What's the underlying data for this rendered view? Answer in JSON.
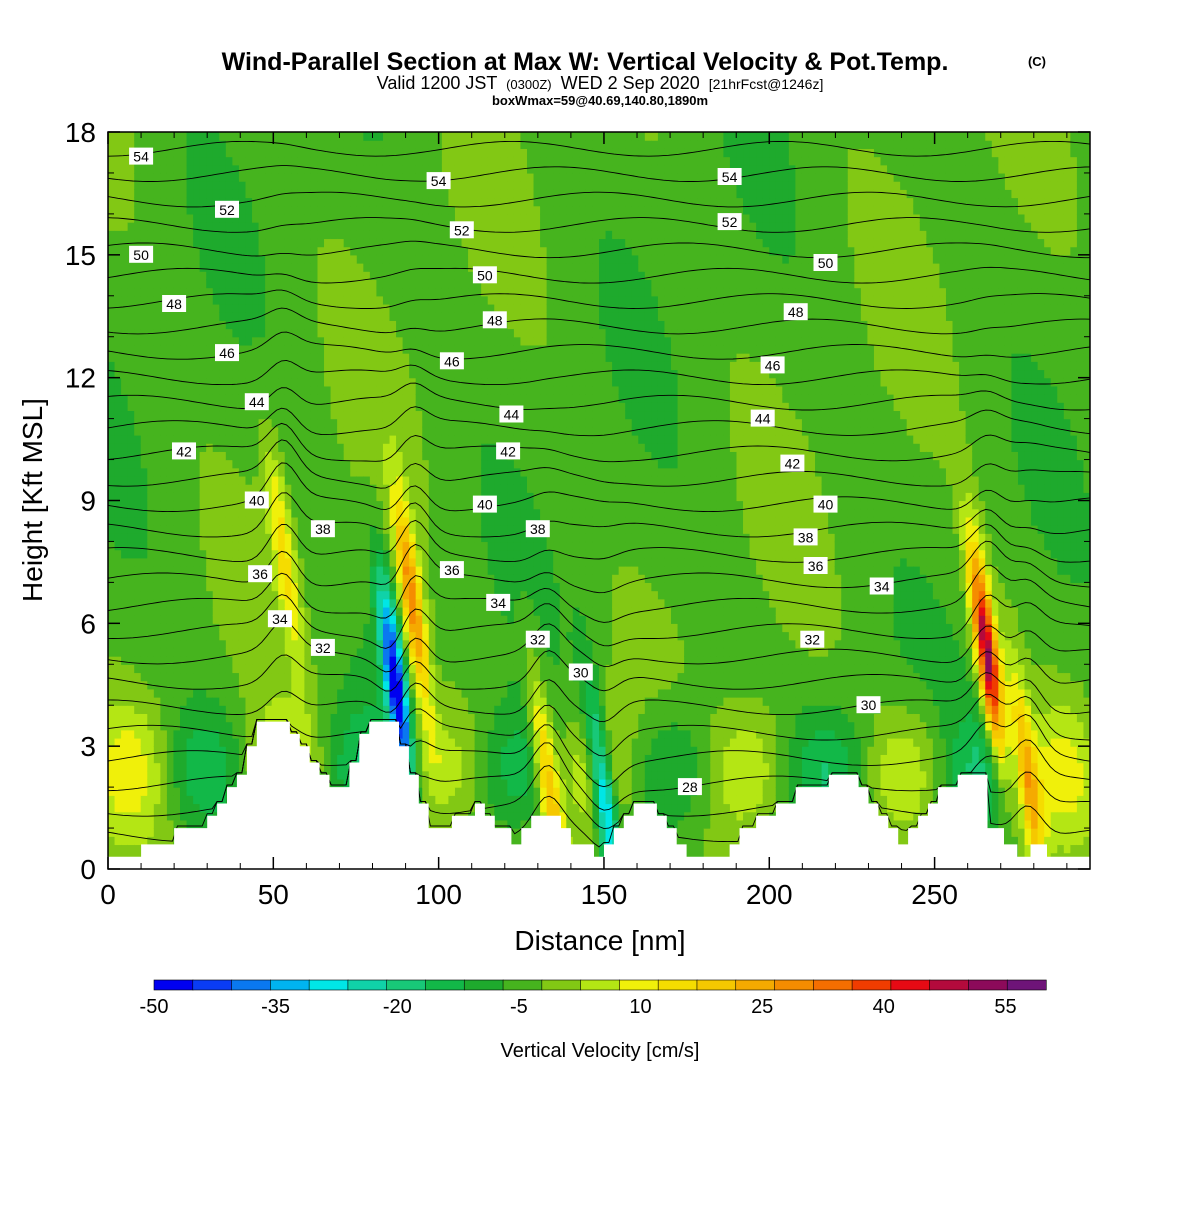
{
  "title": {
    "main": "Wind-Parallel Section at Max W: Vertical Velocity & Pot.Temp.",
    "copyright": "(C)",
    "valid_prefix": "Valid 1200 JST",
    "valid_utc": "(0300Z)",
    "valid_date": "WED 2 Sep 2020",
    "forecast": "[21hrFcst@1246z]",
    "box_info": "boxWmax=59@40.69,140.80,1890m"
  },
  "chart_data": {
    "type": "heatmap",
    "xlabel": "Distance [nm]",
    "ylabel": "Height [Kft MSL]",
    "xlim": [
      0,
      297
    ],
    "ylim": [
      0,
      18
    ],
    "x_ticks": [
      0,
      50,
      100,
      150,
      200,
      250
    ],
    "y_ticks": [
      0,
      3,
      6,
      9,
      12,
      15,
      18
    ],
    "colorbar": {
      "label": "Vertical Velocity [cm/s]",
      "tick_labels": [
        "-50",
        "-35",
        "-20",
        "-5",
        "10",
        "25",
        "40",
        "55"
      ],
      "tick_values": [
        -50,
        -35,
        -20,
        -5,
        10,
        25,
        40,
        55
      ],
      "bins": [
        -50,
        -45,
        -40,
        -35,
        -30,
        -25,
        -20,
        -15,
        -10,
        -5,
        0,
        5,
        10,
        15,
        20,
        25,
        30,
        35,
        40,
        45,
        50,
        55,
        60
      ],
      "colors": [
        "#0000f0",
        "#0a3cf5",
        "#0a78f0",
        "#00b4f0",
        "#00e6e6",
        "#10d2a8",
        "#18c878",
        "#12b848",
        "#1eaa2d",
        "#46b41e",
        "#82c814",
        "#b4e614",
        "#f0f00a",
        "#f5dc00",
        "#f5c800",
        "#f5aa00",
        "#f58c00",
        "#f56e00",
        "#f03c00",
        "#e60a14",
        "#b40a3c",
        "#8c0a5a",
        "#6e1478"
      ]
    },
    "theta_contours": {
      "unit_note": "",
      "labels": [
        {
          "value": "54",
          "x": 10,
          "y": 17.4
        },
        {
          "value": "54",
          "x": 100,
          "y": 16.8
        },
        {
          "value": "54",
          "x": 188,
          "y": 16.9
        },
        {
          "value": "52",
          "x": 36,
          "y": 16.1
        },
        {
          "value": "52",
          "x": 107,
          "y": 15.6
        },
        {
          "value": "52",
          "x": 188,
          "y": 15.8
        },
        {
          "value": "50",
          "x": 10,
          "y": 15.0
        },
        {
          "value": "50",
          "x": 114,
          "y": 14.5
        },
        {
          "value": "50",
          "x": 217,
          "y": 14.8
        },
        {
          "value": "48",
          "x": 20,
          "y": 13.8
        },
        {
          "value": "48",
          "x": 117,
          "y": 13.4
        },
        {
          "value": "48",
          "x": 208,
          "y": 13.6
        },
        {
          "value": "46",
          "x": 36,
          "y": 12.6
        },
        {
          "value": "46",
          "x": 104,
          "y": 12.4
        },
        {
          "value": "46",
          "x": 201,
          "y": 12.3
        },
        {
          "value": "44",
          "x": 45,
          "y": 11.4
        },
        {
          "value": "44",
          "x": 122,
          "y": 11.1
        },
        {
          "value": "44",
          "x": 198,
          "y": 11.0
        },
        {
          "value": "42",
          "x": 23,
          "y": 10.2
        },
        {
          "value": "42",
          "x": 121,
          "y": 10.2
        },
        {
          "value": "42",
          "x": 207,
          "y": 9.9
        },
        {
          "value": "40",
          "x": 45,
          "y": 9.0
        },
        {
          "value": "40",
          "x": 114,
          "y": 8.9
        },
        {
          "value": "40",
          "x": 217,
          "y": 8.9
        },
        {
          "value": "38",
          "x": 65,
          "y": 8.3
        },
        {
          "value": "38",
          "x": 130,
          "y": 8.3
        },
        {
          "value": "38",
          "x": 211,
          "y": 8.1
        },
        {
          "value": "36",
          "x": 46,
          "y": 7.2
        },
        {
          "value": "36",
          "x": 104,
          "y": 7.3
        },
        {
          "value": "36",
          "x": 214,
          "y": 7.4
        },
        {
          "value": "34",
          "x": 52,
          "y": 6.1
        },
        {
          "value": "34",
          "x": 118,
          "y": 6.5
        },
        {
          "value": "34",
          "x": 234,
          "y": 6.9
        },
        {
          "value": "32",
          "x": 65,
          "y": 5.4
        },
        {
          "value": "32",
          "x": 130,
          "y": 5.6
        },
        {
          "value": "32",
          "x": 213,
          "y": 5.6
        },
        {
          "value": "30",
          "x": 143,
          "y": 4.8
        },
        {
          "value": "30",
          "x": 230,
          "y": 4.0
        },
        {
          "value": "28",
          "x": 176,
          "y": 2.0
        }
      ]
    },
    "terrain": [
      [
        0,
        0.3
      ],
      [
        10,
        0.3
      ],
      [
        10,
        0.6
      ],
      [
        20,
        0.6
      ],
      [
        20,
        1.0
      ],
      [
        30,
        1.0
      ],
      [
        30,
        1.3
      ],
      [
        33,
        1.3
      ],
      [
        33,
        1.6
      ],
      [
        36,
        1.6
      ],
      [
        36,
        2.0
      ],
      [
        39,
        2.0
      ],
      [
        39,
        2.3
      ],
      [
        42,
        2.3
      ],
      [
        42,
        3.0
      ],
      [
        45,
        3.0
      ],
      [
        45,
        3.6
      ],
      [
        55,
        3.6
      ],
      [
        55,
        3.3
      ],
      [
        58,
        3.3
      ],
      [
        58,
        3.0
      ],
      [
        61,
        3.0
      ],
      [
        61,
        2.6
      ],
      [
        64,
        2.6
      ],
      [
        64,
        2.3
      ],
      [
        67,
        2.3
      ],
      [
        67,
        2.0
      ],
      [
        73,
        2.0
      ],
      [
        73,
        2.6
      ],
      [
        76,
        2.6
      ],
      [
        76,
        3.3
      ],
      [
        79,
        3.3
      ],
      [
        79,
        3.6
      ],
      [
        88,
        3.6
      ],
      [
        88,
        3.0
      ],
      [
        91,
        3.0
      ],
      [
        91,
        2.3
      ],
      [
        94,
        2.3
      ],
      [
        94,
        1.6
      ],
      [
        97,
        1.6
      ],
      [
        97,
        1.0
      ],
      [
        104,
        1.0
      ],
      [
        104,
        1.3
      ],
      [
        111,
        1.3
      ],
      [
        111,
        1.6
      ],
      [
        114,
        1.6
      ],
      [
        114,
        1.3
      ],
      [
        117,
        1.3
      ],
      [
        117,
        1.0
      ],
      [
        122,
        1.0
      ],
      [
        122,
        0.6
      ],
      [
        125,
        0.6
      ],
      [
        125,
        1.0
      ],
      [
        128,
        1.0
      ],
      [
        128,
        1.3
      ],
      [
        137,
        1.3
      ],
      [
        137,
        1.0
      ],
      [
        140,
        1.0
      ],
      [
        140,
        0.6
      ],
      [
        147,
        0.6
      ],
      [
        147,
        0.3
      ],
      [
        150,
        0.3
      ],
      [
        150,
        0.6
      ],
      [
        153,
        0.6
      ],
      [
        153,
        1.0
      ],
      [
        156,
        1.0
      ],
      [
        156,
        1.3
      ],
      [
        159,
        1.3
      ],
      [
        159,
        1.6
      ],
      [
        166,
        1.6
      ],
      [
        166,
        1.3
      ],
      [
        169,
        1.3
      ],
      [
        169,
        1.0
      ],
      [
        172,
        1.0
      ],
      [
        172,
        0.6
      ],
      [
        175,
        0.6
      ],
      [
        175,
        0.3
      ],
      [
        188,
        0.3
      ],
      [
        188,
        0.6
      ],
      [
        191,
        0.6
      ],
      [
        191,
        1.0
      ],
      [
        196,
        1.0
      ],
      [
        196,
        1.3
      ],
      [
        202,
        1.3
      ],
      [
        202,
        1.6
      ],
      [
        208,
        1.6
      ],
      [
        208,
        2.0
      ],
      [
        218,
        2.0
      ],
      [
        218,
        2.3
      ],
      [
        227,
        2.3
      ],
      [
        227,
        2.0
      ],
      [
        230,
        2.0
      ],
      [
        230,
        1.6
      ],
      [
        233,
        1.6
      ],
      [
        233,
        1.3
      ],
      [
        236,
        1.3
      ],
      [
        236,
        1.0
      ],
      [
        239,
        1.0
      ],
      [
        239,
        0.6
      ],
      [
        242,
        0.6
      ],
      [
        242,
        1.0
      ],
      [
        245,
        1.0
      ],
      [
        245,
        1.3
      ],
      [
        248,
        1.3
      ],
      [
        248,
        1.6
      ],
      [
        251,
        1.6
      ],
      [
        251,
        2.0
      ],
      [
        257,
        2.0
      ],
      [
        257,
        2.3
      ],
      [
        266,
        2.3
      ],
      [
        266,
        1.0
      ],
      [
        271,
        1.0
      ],
      [
        271,
        0.6
      ],
      [
        275,
        0.6
      ],
      [
        275,
        0.3
      ],
      [
        279,
        0.3
      ],
      [
        279,
        0.6
      ],
      [
        284,
        0.6
      ],
      [
        284,
        0.3
      ],
      [
        297,
        0.3
      ],
      [
        297,
        0
      ]
    ],
    "w_features": [
      {
        "x": 266,
        "y": 5.2,
        "w": 60,
        "note": "max updraft core"
      },
      {
        "x": 92,
        "y": 6.5,
        "w": 35,
        "note": "updraft"
      },
      {
        "x": 53,
        "y": 7.8,
        "w": 18,
        "note": "updraft"
      },
      {
        "x": 87,
        "y": 4.5,
        "w": -45,
        "note": "downdraft"
      },
      {
        "x": 150,
        "y": 1.8,
        "w": -35,
        "note": "downdraft"
      },
      {
        "x": 133,
        "y": 2.2,
        "w": 28,
        "note": "updraft"
      },
      {
        "x": 278,
        "y": 2.3,
        "w": 28,
        "note": "updraft"
      }
    ]
  }
}
